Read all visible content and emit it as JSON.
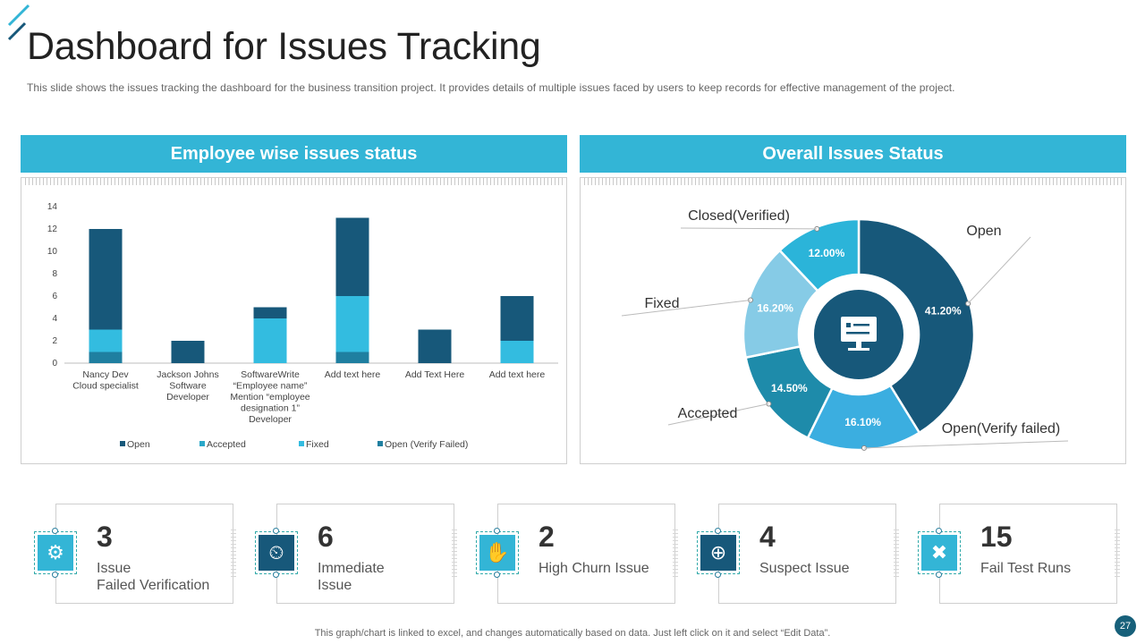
{
  "title": "Dashboard for Issues Tracking",
  "subtitle": "This slide shows the issues tracking the dashboard for the business transition project. It provides details of multiple issues faced by users to keep records for effective  management  of the project.",
  "left_panel": {
    "heading": "Employee wise issues status"
  },
  "right_panel": {
    "heading": "Overall Issues Status"
  },
  "chart_data": [
    {
      "type": "bar",
      "stacked": true,
      "categories": [
        "Nancy Dev\nCloud specialist",
        "Jackson Johns\nSoftware\nDeveloper",
        "SoftwareWrite\n“Employee name”\nMention “employee\ndesignation 1”\nDeveloper",
        "Add text here",
        "Add Text Here",
        "Add text here"
      ],
      "series": [
        {
          "name": "Open",
          "color": "#17587A",
          "values": [
            9,
            2,
            1,
            7,
            3,
            4
          ]
        },
        {
          "name": "Accepted",
          "color": "#2AA8C9",
          "values": [
            0,
            0,
            0,
            0,
            0,
            0
          ]
        },
        {
          "name": "Fixed",
          "color": "#33BCE0",
          "values": [
            2,
            0,
            4,
            5,
            0,
            2
          ]
        },
        {
          "name": "Open (Verify Failed)",
          "color": "#1F7FA0",
          "values": [
            1,
            0,
            0,
            1,
            0,
            0
          ]
        }
      ],
      "ylim": [
        0,
        14
      ],
      "yticks": [
        0,
        2,
        4,
        6,
        8,
        10,
        12,
        14
      ],
      "legend_position": "bottom",
      "grid": false
    },
    {
      "type": "pie",
      "donut": true,
      "slices": [
        {
          "label": "Open",
          "value": 41.2,
          "display": "41.20%",
          "color": "#17587A"
        },
        {
          "label": "Open(Verify failed)",
          "value": 16.1,
          "display": "16.10%",
          "color": "#3BAEE0"
        },
        {
          "label": "Accepted",
          "value": 14.5,
          "display": "14.50%",
          "color": "#1E8BAA"
        },
        {
          "label": "Fixed",
          "value": 16.2,
          "display": "16.20%",
          "color": "#86CBE6"
        },
        {
          "label": "Closed(Verified)",
          "value": 12.0,
          "display": "12.00%",
          "color": "#2BB4D9"
        }
      ]
    }
  ],
  "cards": [
    {
      "number": "3",
      "label": "Issue\nFailed Verification",
      "icon": "gear-warning-icon"
    },
    {
      "number": "6",
      "label": "Immediate\nIssue",
      "icon": "person-clock-icon"
    },
    {
      "number": "2",
      "label": "High Churn Issue",
      "icon": "person-raising-hand-icon"
    },
    {
      "number": "4",
      "label": "Suspect Issue",
      "icon": "user-target-icon"
    },
    {
      "number": "15",
      "label": "Fail Test Runs",
      "icon": "document-error-icon"
    }
  ],
  "footer": "This graph/chart is linked to excel,  and changes automatically based on data. Just left click on it and select “Edit Data”.",
  "page_number": "27",
  "colors": {
    "accent": "#33B5D6",
    "dark": "#17587A"
  }
}
